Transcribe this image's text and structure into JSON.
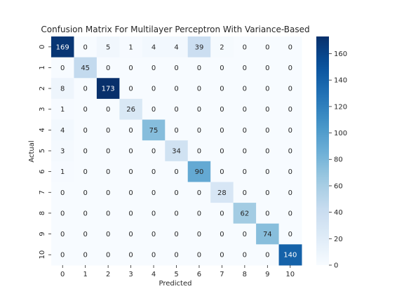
{
  "chart_data": {
    "type": "heatmap",
    "title": "Confusion Matrix For Multilayer Perceptron With Variance-Based",
    "xlabel": "Predicted",
    "ylabel": "Actual",
    "x_labels": [
      "0",
      "1",
      "2",
      "3",
      "4",
      "5",
      "6",
      "7",
      "8",
      "9",
      "10"
    ],
    "y_labels": [
      "0",
      "1",
      "2",
      "3",
      "4",
      "5",
      "6",
      "7",
      "8",
      "9",
      "10"
    ],
    "matrix": [
      [
        169,
        0,
        5,
        1,
        4,
        4,
        39,
        2,
        0,
        0,
        0
      ],
      [
        0,
        45,
        0,
        0,
        0,
        0,
        0,
        0,
        0,
        0,
        0
      ],
      [
        8,
        0,
        173,
        0,
        0,
        0,
        0,
        0,
        0,
        0,
        0
      ],
      [
        1,
        0,
        0,
        26,
        0,
        0,
        0,
        0,
        0,
        0,
        0
      ],
      [
        4,
        0,
        0,
        0,
        75,
        0,
        0,
        0,
        0,
        0,
        0
      ],
      [
        3,
        0,
        0,
        0,
        0,
        34,
        0,
        0,
        0,
        0,
        0
      ],
      [
        1,
        0,
        0,
        0,
        0,
        0,
        90,
        0,
        0,
        0,
        0
      ],
      [
        0,
        0,
        0,
        0,
        0,
        0,
        0,
        28,
        0,
        0,
        0
      ],
      [
        0,
        0,
        0,
        0,
        0,
        0,
        0,
        0,
        62,
        0,
        0
      ],
      [
        0,
        0,
        0,
        0,
        0,
        0,
        0,
        0,
        0,
        74,
        0
      ],
      [
        0,
        0,
        0,
        0,
        0,
        0,
        0,
        0,
        0,
        0,
        140
      ]
    ],
    "colorbar": {
      "colormap": "Blues",
      "range": [
        0,
        173
      ],
      "ticks": [
        0,
        20,
        40,
        60,
        80,
        100,
        120,
        140,
        160
      ]
    }
  }
}
